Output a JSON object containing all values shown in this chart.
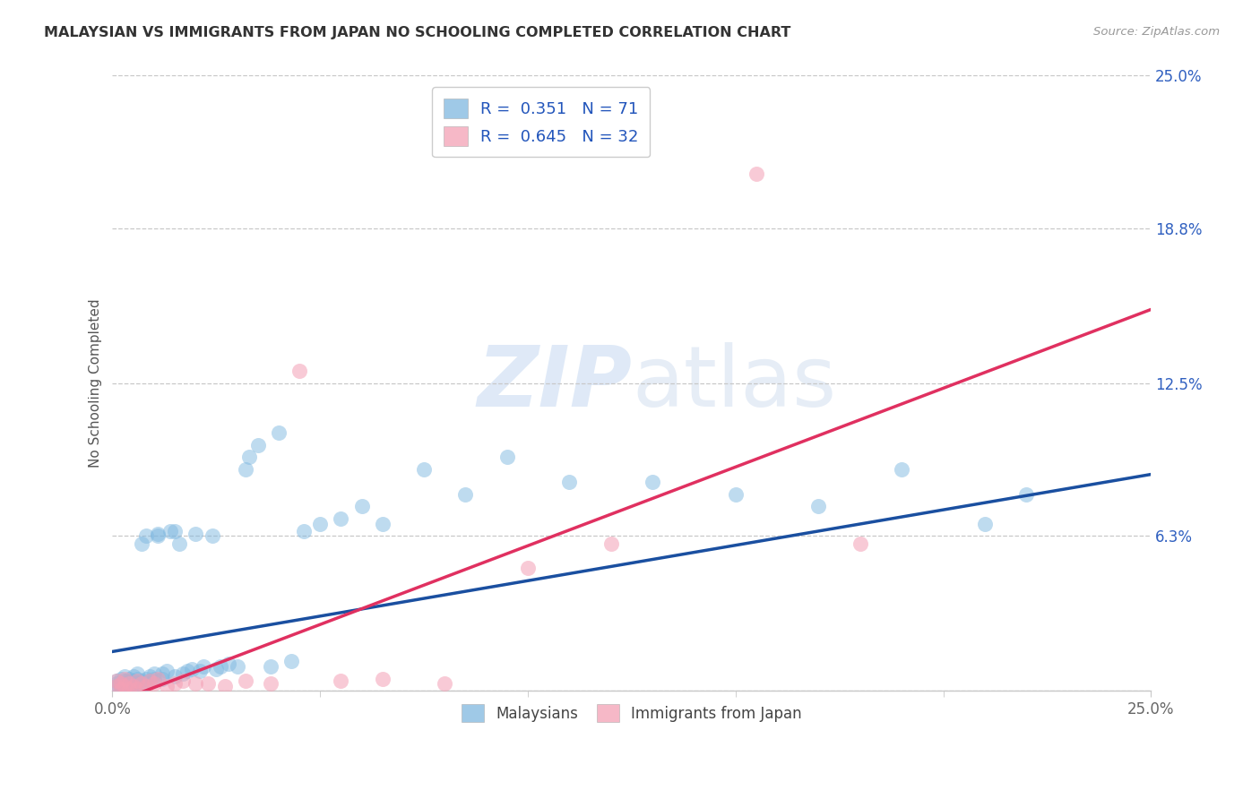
{
  "title": "MALAYSIAN VS IMMIGRANTS FROM JAPAN NO SCHOOLING COMPLETED CORRELATION CHART",
  "source": "Source: ZipAtlas.com",
  "ylabel": "No Schooling Completed",
  "xlim": [
    0.0,
    0.25
  ],
  "ylim": [
    0.0,
    0.25
  ],
  "ytick_positions": [
    0.063,
    0.125,
    0.188,
    0.25
  ],
  "ytick_labels": [
    "6.3%",
    "12.5%",
    "18.8%",
    "25.0%"
  ],
  "malaysians_color": "#7fb8e0",
  "japan_color": "#f4a0b5",
  "trendline_malaysians_color": "#1a4fa0",
  "trendline_japan_color": "#e03060",
  "background_color": "#ffffff",
  "grid_color": "#c8c8c8",
  "watermark_color": "#ccdff5",
  "title_color": "#333333",
  "source_color": "#999999",
  "legend_label_color": "#2255bb",
  "R_malaysians": 0.351,
  "N_malaysians": 71,
  "R_japan": 0.645,
  "N_japan": 32,
  "trendline_mal_x0": 0.0,
  "trendline_mal_y0": 0.016,
  "trendline_mal_x1": 0.25,
  "trendline_mal_y1": 0.088,
  "trendline_jpn_x0": 0.0,
  "trendline_jpn_y0": -0.005,
  "trendline_jpn_x1": 0.25,
  "trendline_jpn_y1": 0.155,
  "mal_x": [
    0.001,
    0.001,
    0.001,
    0.002,
    0.002,
    0.002,
    0.002,
    0.003,
    0.003,
    0.003,
    0.003,
    0.004,
    0.004,
    0.004,
    0.005,
    0.005,
    0.005,
    0.005,
    0.006,
    0.006,
    0.006,
    0.007,
    0.007,
    0.007,
    0.008,
    0.008,
    0.009,
    0.009,
    0.01,
    0.01,
    0.011,
    0.011,
    0.012,
    0.012,
    0.013,
    0.014,
    0.015,
    0.015,
    0.016,
    0.017,
    0.018,
    0.019,
    0.02,
    0.021,
    0.022,
    0.024,
    0.025,
    0.026,
    0.028,
    0.03,
    0.032,
    0.033,
    0.035,
    0.038,
    0.04,
    0.043,
    0.046,
    0.05,
    0.055,
    0.06,
    0.065,
    0.075,
    0.085,
    0.095,
    0.11,
    0.13,
    0.15,
    0.17,
    0.19,
    0.21,
    0.22
  ],
  "mal_y": [
    0.002,
    0.003,
    0.004,
    0.001,
    0.003,
    0.005,
    0.002,
    0.002,
    0.003,
    0.004,
    0.006,
    0.002,
    0.004,
    0.005,
    0.001,
    0.003,
    0.004,
    0.006,
    0.003,
    0.005,
    0.007,
    0.002,
    0.004,
    0.06,
    0.005,
    0.063,
    0.004,
    0.006,
    0.005,
    0.007,
    0.063,
    0.064,
    0.005,
    0.007,
    0.008,
    0.065,
    0.006,
    0.065,
    0.06,
    0.007,
    0.008,
    0.009,
    0.064,
    0.008,
    0.01,
    0.063,
    0.009,
    0.01,
    0.011,
    0.01,
    0.09,
    0.095,
    0.1,
    0.01,
    0.105,
    0.012,
    0.065,
    0.068,
    0.07,
    0.075,
    0.068,
    0.09,
    0.08,
    0.095,
    0.085,
    0.085,
    0.08,
    0.075,
    0.09,
    0.068,
    0.08
  ],
  "jpn_x": [
    0.001,
    0.001,
    0.002,
    0.002,
    0.003,
    0.003,
    0.004,
    0.004,
    0.005,
    0.006,
    0.006,
    0.007,
    0.008,
    0.009,
    0.01,
    0.011,
    0.013,
    0.015,
    0.017,
    0.02,
    0.023,
    0.027,
    0.032,
    0.038,
    0.045,
    0.055,
    0.065,
    0.08,
    0.1,
    0.12,
    0.155,
    0.18
  ],
  "jpn_y": [
    0.002,
    0.004,
    0.001,
    0.003,
    0.002,
    0.005,
    0.001,
    0.003,
    0.002,
    0.001,
    0.004,
    0.003,
    0.002,
    0.004,
    0.003,
    0.005,
    0.002,
    0.003,
    0.004,
    0.003,
    0.003,
    0.002,
    0.004,
    0.003,
    0.13,
    0.004,
    0.005,
    0.003,
    0.05,
    0.06,
    0.21,
    0.06
  ]
}
